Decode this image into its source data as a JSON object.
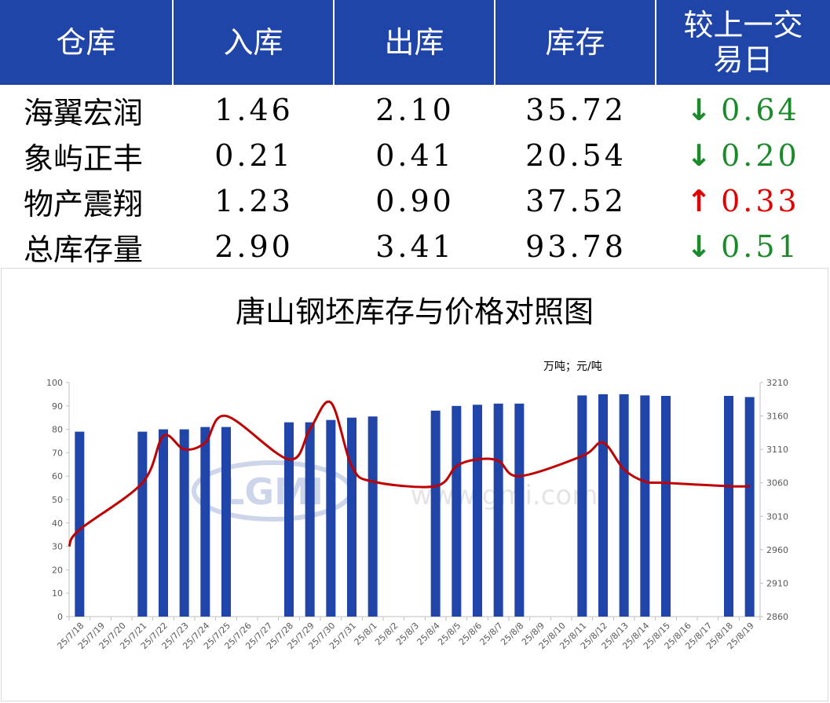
{
  "table": {
    "headers": [
      "仓库",
      "入库",
      "出库",
      "库存",
      "较上一交\n易日"
    ],
    "rows": [
      {
        "name": "海翼宏润",
        "in": "1.46",
        "out": "2.10",
        "stock": "35.72",
        "dir": "down",
        "arrow": "↓",
        "change": "0.64"
      },
      {
        "name": "象屿正丰",
        "in": "0.21",
        "out": "0.41",
        "stock": "20.54",
        "dir": "down",
        "arrow": "↓",
        "change": "0.20"
      },
      {
        "name": "物产震翔",
        "in": "1.23",
        "out": "0.90",
        "stock": "37.52",
        "dir": "up",
        "arrow": "↑",
        "change": "0.33"
      },
      {
        "name": "总库存量",
        "in": "2.90",
        "out": "3.41",
        "stock": "93.78",
        "dir": "down",
        "arrow": "↓",
        "change": "0.51"
      }
    ]
  },
  "colors": {
    "header_bg": "#1f45a8",
    "down": "#1a8a2a",
    "up": "#e00000",
    "bar": "#1f45a8",
    "line": "#c00000"
  },
  "watermark": {
    "logo": "LGMI",
    "url": "www.gmi.com"
  },
  "chart_data": {
    "type": "bar",
    "title": "唐山钢坯库存与价格对照图",
    "unit_label": "万吨；元/吨",
    "categories": [
      "25/7/18",
      "25/7/19",
      "25/7/20",
      "25/7/21",
      "25/7/22",
      "25/7/23",
      "25/7/24",
      "25/7/25",
      "25/7/26",
      "25/7/27",
      "25/7/28",
      "25/7/29",
      "25/7/30",
      "25/7/31",
      "25/8/1",
      "25/8/2",
      "25/8/3",
      "25/8/4",
      "25/8/5",
      "25/8/6",
      "25/8/7",
      "25/8/8",
      "25/8/9",
      "25/8/10",
      "25/8/11",
      "25/8/12",
      "25/8/13",
      "25/8/14",
      "25/8/15",
      "25/8/16",
      "25/8/17",
      "25/8/18",
      "25/8/19"
    ],
    "series": [
      {
        "kind": "bar",
        "axis": "left",
        "values": [
          79,
          null,
          null,
          79,
          80,
          80,
          81,
          81,
          null,
          null,
          83,
          83,
          84,
          85,
          85.5,
          null,
          null,
          88,
          90,
          90.5,
          91,
          91,
          null,
          null,
          94.5,
          95,
          95,
          94.5,
          94.3,
          null,
          null,
          94.3,
          93.78
        ]
      },
      {
        "kind": "line",
        "axis": "right",
        "values": [
          2990,
          null,
          null,
          3060,
          3130,
          3110,
          3120,
          3160,
          null,
          null,
          3095,
          3140,
          3180,
          3085,
          3062,
          null,
          null,
          3055,
          3085,
          3095,
          3093,
          3070,
          null,
          null,
          3100,
          3120,
          3080,
          3062,
          3060,
          null,
          null,
          3055,
          3055
        ]
      }
    ],
    "y_left": {
      "min": 0,
      "max": 100,
      "ticks": [
        0,
        10,
        20,
        30,
        40,
        50,
        60,
        70,
        80,
        90,
        100
      ]
    },
    "y_right": {
      "min": 2860,
      "max": 3210,
      "ticks": [
        2860,
        2910,
        2960,
        3010,
        3060,
        3110,
        3160,
        3210
      ]
    }
  }
}
